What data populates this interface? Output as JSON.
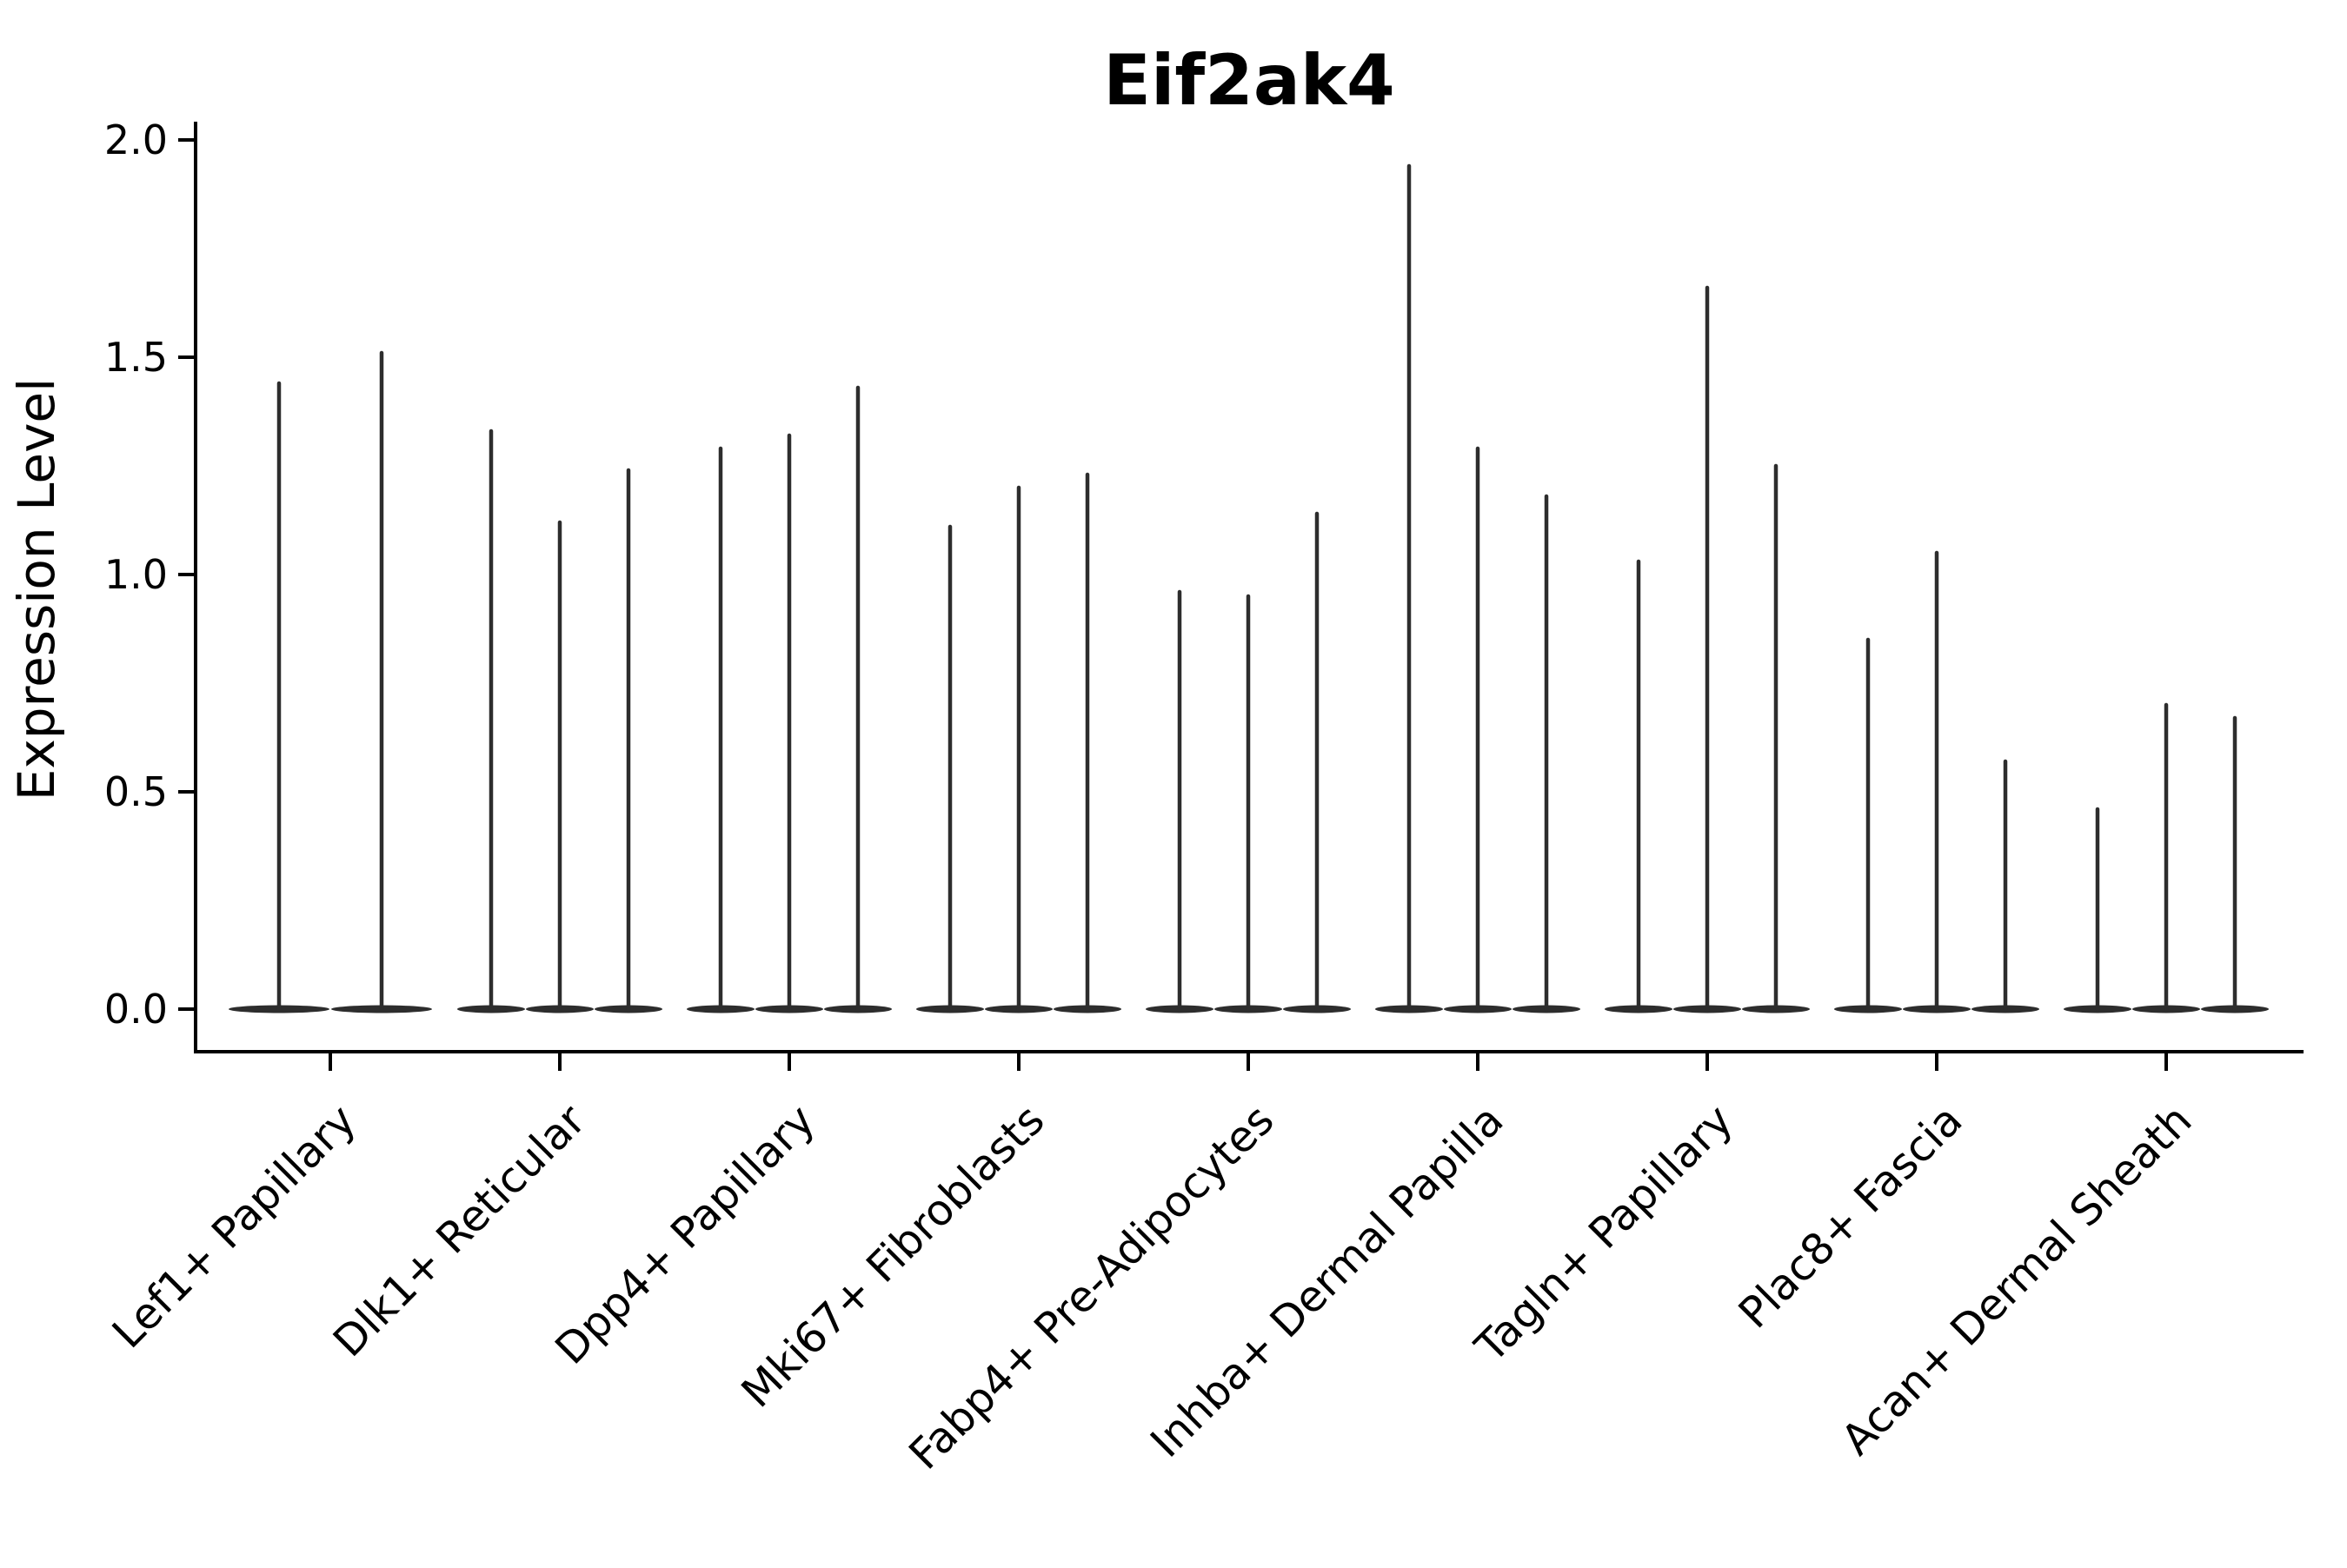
{
  "chart_data": {
    "type": "violin",
    "title": "Eif2ak4",
    "ylabel": "Expression Level",
    "xlabel": "",
    "ylim": [
      0.0,
      2.0
    ],
    "yticks": [
      0.0,
      0.5,
      1.0,
      1.5,
      2.0
    ],
    "y_tick_labels": [
      "0.0",
      "0.5",
      "1.0",
      "1.5",
      "2.0"
    ],
    "grid": "off",
    "legend": "none",
    "categories": [
      "Lef1+ Papillary",
      "Dlk1+ Reticular",
      "Dpp4+ Papillary",
      "Mki67+ Fibroblasts",
      "Fabp4+ Pre-Adipocytes",
      "Inhba+ Dermal Papilla",
      "Tagln+ Papillary",
      "Plac8+ Fascia",
      "Acan+ Dermal Sheath"
    ],
    "series": [
      {
        "category": "Lef1+ Papillary",
        "violin_maxima": [
          1.44,
          1.51
        ]
      },
      {
        "category": "Dlk1+ Reticular",
        "violin_maxima": [
          1.33,
          1.12,
          1.24
        ]
      },
      {
        "category": "Dpp4+ Papillary",
        "violin_maxima": [
          1.29,
          1.32,
          1.43
        ]
      },
      {
        "category": "Mki67+ Fibroblasts",
        "violin_maxima": [
          1.11,
          1.2,
          1.23
        ]
      },
      {
        "category": "Fabp4+ Pre-Adipocytes",
        "violin_maxima": [
          0.96,
          0.95,
          1.14
        ]
      },
      {
        "category": "Inhba+ Dermal Papilla",
        "violin_maxima": [
          1.94,
          1.29,
          1.18
        ]
      },
      {
        "category": "Tagln+ Papillary",
        "violin_maxima": [
          1.03,
          1.66,
          1.25
        ]
      },
      {
        "category": "Plac8+ Fascia",
        "violin_maxima": [
          0.85,
          1.05,
          0.57
        ]
      },
      {
        "category": "Acan+ Dermal Sheath",
        "violin_maxima": [
          0.46,
          0.7,
          0.67
        ]
      }
    ],
    "violin_baseline_value": 0.0,
    "colors": {
      "background": "#ffffff",
      "violin": "#2d2d2d",
      "axis": "#000000",
      "text": "#000000"
    }
  }
}
